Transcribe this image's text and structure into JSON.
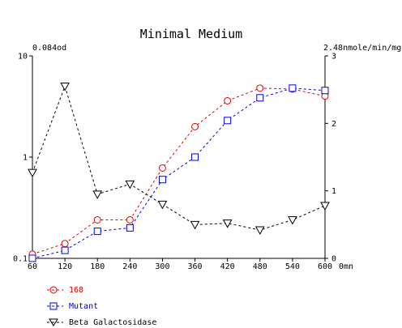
{
  "chart_data": {
    "type": "line",
    "title": "Minimal Medium",
    "x": [
      60,
      120,
      180,
      240,
      300,
      360,
      420,
      480,
      540,
      600
    ],
    "x_tick_labels": [
      "60",
      "120",
      "180",
      "240",
      "300",
      "360",
      "420",
      "480",
      "540",
      "600"
    ],
    "x_unit_label": "0mn",
    "xlim": [
      60,
      600
    ],
    "left_axis": {
      "scale": "log",
      "ylim": [
        0.1,
        10
      ],
      "tick_labels": [
        "0.1",
        "1",
        "10"
      ],
      "top_label": "0.084od"
    },
    "right_axis": {
      "scale": "linear",
      "ylim": [
        0,
        3
      ],
      "tick_labels": [
        "0",
        "1",
        "2",
        "3"
      ],
      "top_label": "2.48nmole/min/mg"
    },
    "series": [
      {
        "name": "168",
        "axis": "left",
        "marker": "circle",
        "color": "#dd0000",
        "values": [
          0.11,
          0.14,
          0.24,
          0.24,
          0.78,
          2.0,
          3.6,
          4.8,
          4.7,
          4.0
        ]
      },
      {
        "name": "Mutant",
        "axis": "left",
        "marker": "square",
        "color": "#0000dd",
        "values": [
          0.1,
          0.12,
          0.185,
          0.2,
          0.6,
          1.0,
          2.3,
          3.85,
          4.8,
          4.55
        ]
      },
      {
        "name": "Beta Galactosidase",
        "axis": "right",
        "marker": "triangle-down",
        "color": "#000000",
        "values": [
          1.27,
          2.55,
          0.95,
          1.1,
          0.8,
          0.5,
          0.52,
          0.42,
          0.57,
          0.78
        ]
      }
    ],
    "legend_position": "bottom-left",
    "grid": false
  }
}
